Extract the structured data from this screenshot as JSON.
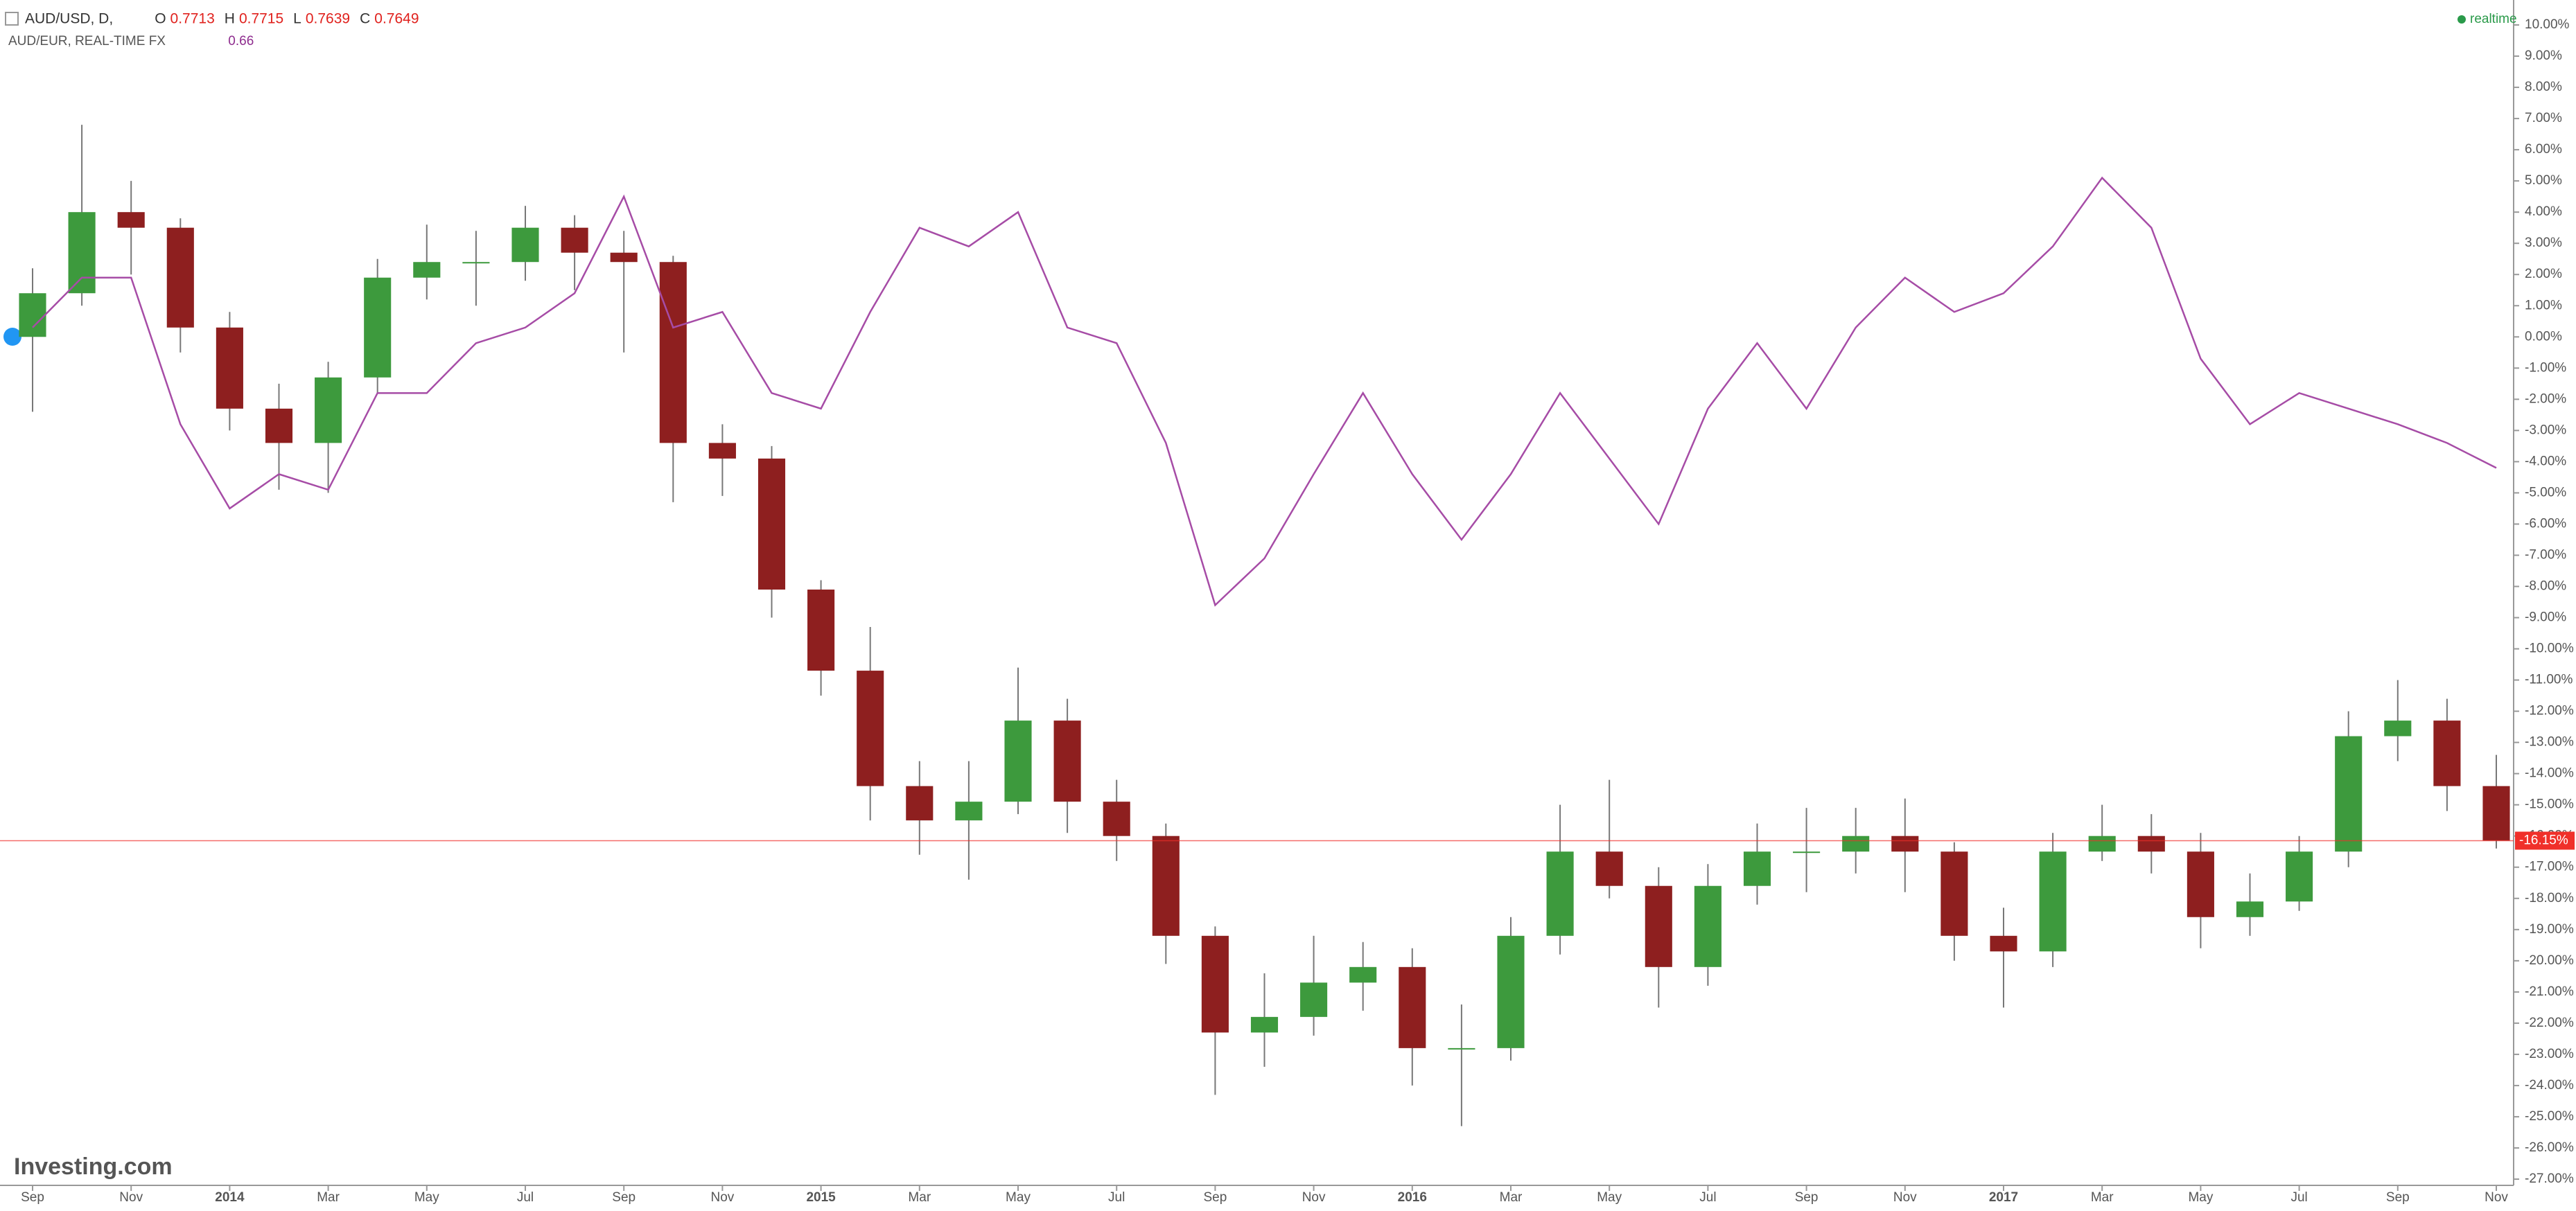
{
  "chart_data": {
    "type": "candlestick",
    "header": {
      "ohlc": [
        {
          "key": "O",
          "value": 0.7713
        },
        {
          "key": "H",
          "value": 0.7715
        },
        {
          "key": "L",
          "value": 0.7639
        },
        {
          "key": "C",
          "value": 0.7649
        }
      ]
    },
    "status": "realtime",
    "watermark": "Investing.com",
    "categories": [
      "Sep",
      null,
      "Nov",
      null,
      "2014",
      null,
      "Mar",
      null,
      "May",
      null,
      "Jul",
      null,
      "Sep",
      null,
      "Nov",
      null,
      "2015",
      null,
      "Mar",
      null,
      "May",
      null,
      "Jul",
      null,
      "Sep",
      null,
      "Nov",
      null,
      "2016",
      null,
      "Mar",
      null,
      "May",
      null,
      "Jul",
      null,
      "Sep",
      null,
      "Nov",
      null,
      "2017",
      null,
      "Mar",
      null,
      "May",
      null,
      "Jul",
      null,
      "Sep",
      null,
      "Nov"
    ],
    "series": [
      {
        "name": "AUD/USD, D,",
        "type": "candlestick",
        "up_color": "#3d9a3d",
        "down_color": "#8e1f1f",
        "last_color": "#f0302a",
        "last_label": "-16.15%",
        "open": [
          0,
          1.4,
          4.0,
          3.5,
          0.3,
          -2.3,
          -3.4,
          -1.3,
          1.9,
          2.4,
          2.4,
          3.5,
          2.7,
          2.4,
          -3.4,
          -3.9,
          -8.1,
          -10.7,
          -14.4,
          -15.5,
          -14.9,
          -12.3,
          -14.9,
          -16.0,
          -19.2,
          -22.3,
          -21.8,
          -20.7,
          -20.2,
          -22.8,
          -22.8,
          -19.2,
          -16.5,
          -17.6,
          -20.2,
          -17.6,
          -16.5,
          -16.5,
          -16.0,
          -16.5,
          -19.2,
          -19.7,
          -16.5,
          -16.0,
          -16.5,
          -18.6,
          -18.1,
          -16.5,
          -12.8,
          -12.3,
          -14.4
        ],
        "high": [
          2.2,
          6.8,
          5.0,
          3.8,
          0.8,
          -1.5,
          -0.8,
          2.5,
          3.6,
          3.4,
          4.2,
          3.9,
          3.4,
          2.6,
          -2.8,
          -3.5,
          -7.8,
          -9.3,
          -13.6,
          -13.6,
          -10.6,
          -11.6,
          -14.2,
          -15.6,
          -18.9,
          -20.4,
          -19.2,
          -19.4,
          -19.6,
          -21.4,
          -18.6,
          -15.0,
          -14.2,
          -17.0,
          -16.9,
          -15.6,
          -15.1,
          -15.1,
          -14.8,
          -16.2,
          -18.3,
          -15.9,
          -15.0,
          -15.3,
          -15.9,
          -17.2,
          -16.0,
          -12.0,
          -11.0,
          -11.6,
          -13.4
        ],
        "low": [
          -2.4,
          1.0,
          2.0,
          -0.5,
          -3.0,
          -4.9,
          -5.0,
          -1.8,
          1.2,
          1.0,
          1.8,
          1.5,
          -0.5,
          -5.3,
          -5.1,
          -9.0,
          -11.5,
          -15.5,
          -16.6,
          -17.4,
          -15.3,
          -15.9,
          -16.8,
          -20.1,
          -24.3,
          -23.4,
          -22.4,
          -21.6,
          -24.0,
          -25.3,
          -23.2,
          -19.8,
          -18.0,
          -21.5,
          -20.8,
          -18.2,
          -17.8,
          -17.2,
          -17.8,
          -20.0,
          -21.5,
          -20.2,
          -16.8,
          -17.2,
          -19.6,
          -19.2,
          -18.4,
          -17.0,
          -13.6,
          -15.2,
          -16.4
        ],
        "close": [
          1.4,
          4.0,
          3.5,
          0.3,
          -2.3,
          -3.4,
          -1.3,
          1.9,
          2.4,
          2.4,
          3.5,
          2.7,
          2.4,
          -3.4,
          -3.9,
          -8.1,
          -10.7,
          -14.4,
          -15.5,
          -14.9,
          -12.3,
          -14.9,
          -16.0,
          -19.2,
          -22.3,
          -21.8,
          -20.7,
          -20.2,
          -22.8,
          -22.8,
          -19.2,
          -16.5,
          -17.6,
          -20.2,
          -17.6,
          -16.5,
          -16.5,
          -16.0,
          -16.5,
          -19.2,
          -19.7,
          -16.5,
          -16.0,
          -16.5,
          -18.6,
          -18.1,
          -16.5,
          -12.8,
          -12.3,
          -14.4,
          -16.15
        ]
      },
      {
        "name": "AUD/EUR, REAL-TIME FX",
        "type": "line",
        "color": "#a64ca6",
        "last_value": 0.66,
        "values": [
          0.3,
          1.9,
          1.9,
          -2.8,
          -5.5,
          -4.4,
          -4.9,
          -1.8,
          -1.8,
          -0.2,
          0.3,
          1.4,
          4.5,
          0.3,
          0.8,
          -1.8,
          -2.3,
          0.8,
          3.5,
          2.9,
          4.0,
          0.3,
          -0.2,
          -3.4,
          -8.6,
          -7.1,
          -4.4,
          -1.8,
          -4.4,
          -6.5,
          -4.4,
          -1.8,
          -3.9,
          -6.0,
          -2.3,
          -0.2,
          -2.3,
          0.3,
          1.9,
          0.8,
          1.4,
          2.9,
          5.1,
          3.5,
          -0.7,
          -2.8,
          -1.8,
          -2.3,
          -2.8,
          -3.4,
          -4.2
        ]
      }
    ],
    "ylim": [
      -27.2,
      10.8
    ],
    "yticks": [
      {
        "value": 10,
        "label": "10.00%"
      },
      {
        "value": 9,
        "label": "9.00%"
      },
      {
        "value": 8,
        "label": "8.00%"
      },
      {
        "value": 7,
        "label": "7.00%"
      },
      {
        "value": 6,
        "label": "6.00%"
      },
      {
        "value": 5,
        "label": "5.00%"
      },
      {
        "value": 4,
        "label": "4.00%"
      },
      {
        "value": 3,
        "label": "3.00%"
      },
      {
        "value": 2,
        "label": "2.00%"
      },
      {
        "value": 1,
        "label": "1.00%"
      },
      {
        "value": 0,
        "label": "0.00%"
      },
      {
        "value": -1,
        "label": "-1.00%"
      },
      {
        "value": -2,
        "label": "-2.00%"
      },
      {
        "value": -3,
        "label": "-3.00%"
      },
      {
        "value": -4,
        "label": "-4.00%"
      },
      {
        "value": -5,
        "label": "-5.00%"
      },
      {
        "value": -6,
        "label": "-6.00%"
      },
      {
        "value": -7,
        "label": "-7.00%"
      },
      {
        "value": -8,
        "label": "-8.00%"
      },
      {
        "value": -9,
        "label": "-9.00%"
      },
      {
        "value": -10,
        "label": "-10.00%"
      },
      {
        "value": -11,
        "label": "-11.00%"
      },
      {
        "value": -12,
        "label": "-12.00%"
      },
      {
        "value": -13,
        "label": "-13.00%"
      },
      {
        "value": -14,
        "label": "-14.00%"
      },
      {
        "value": -15,
        "label": "-15.00%"
      },
      {
        "value": -16,
        "label": "-16.00%"
      },
      {
        "value": -17,
        "label": "-17.00%"
      },
      {
        "value": -18,
        "label": "-18.00%"
      },
      {
        "value": -19,
        "label": "-19.00%"
      },
      {
        "value": -20,
        "label": "-20.00%"
      },
      {
        "value": -21,
        "label": "-21.00%"
      },
      {
        "value": -22,
        "label": "-22.00%"
      },
      {
        "value": -23,
        "label": "-23.00%"
      },
      {
        "value": -24,
        "label": "-24.00%"
      },
      {
        "value": -25,
        "label": "-25.00%"
      },
      {
        "value": -26,
        "label": "-26.00%"
      },
      {
        "value": -27,
        "label": "-27.00%"
      }
    ],
    "grid": false
  }
}
